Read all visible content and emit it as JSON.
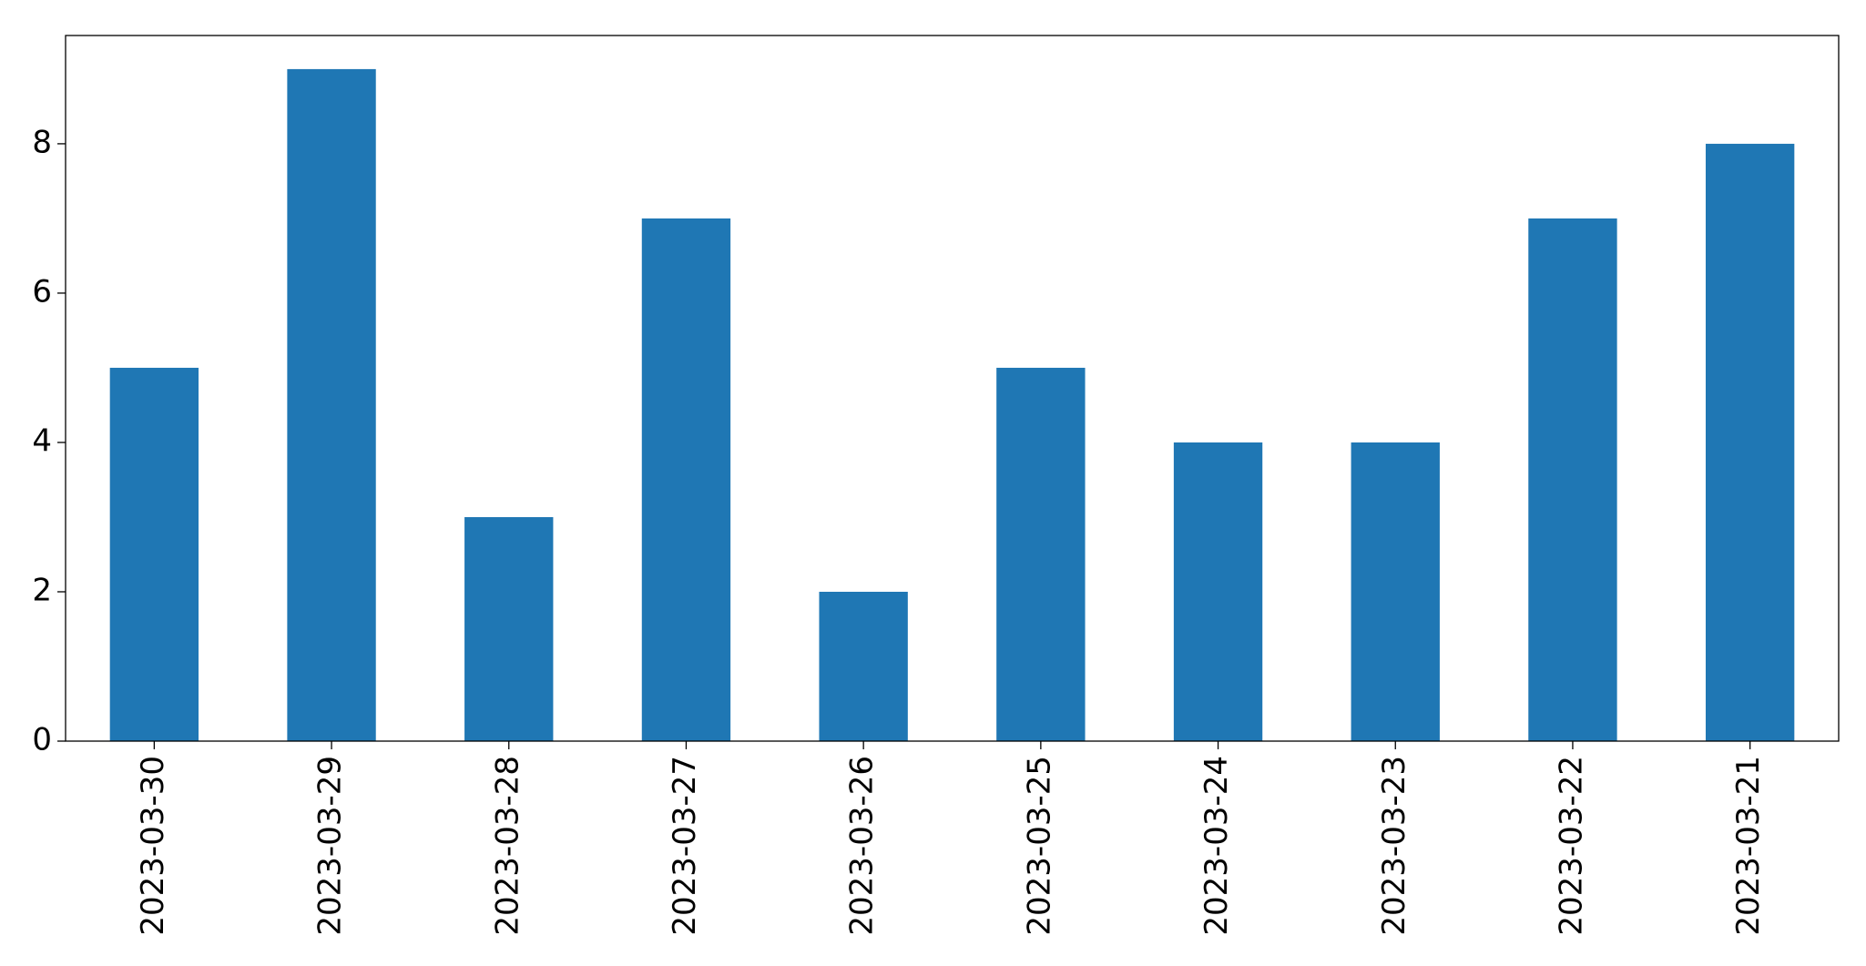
{
  "chart_data": {
    "type": "bar",
    "categories": [
      "2023-03-30",
      "2023-03-29",
      "2023-03-28",
      "2023-03-27",
      "2023-03-26",
      "2023-03-25",
      "2023-03-24",
      "2023-03-23",
      "2023-03-22",
      "2023-03-21"
    ],
    "values": [
      5,
      9,
      3,
      7,
      2,
      5,
      4,
      4,
      7,
      8
    ],
    "color": "#1f77b4",
    "ylim": [
      0,
      9.45
    ],
    "yticks": [
      0,
      2,
      4,
      6,
      8
    ],
    "grid": false
  }
}
